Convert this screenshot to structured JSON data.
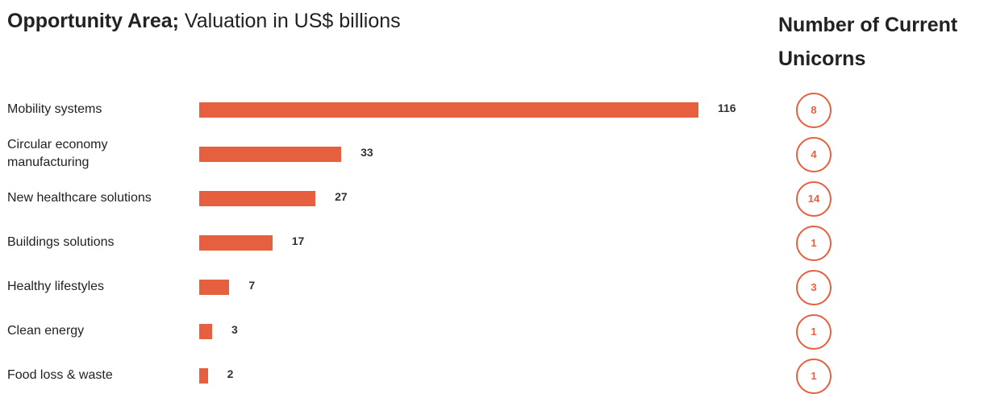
{
  "header": {
    "title_bold": "Opportunity Area;",
    "title_normal": "Valuation in US$ billions",
    "unicorn_header": "Number of Current Unicorns"
  },
  "chart_data": {
    "type": "bar",
    "orientation": "horizontal",
    "title": "Opportunity Area; Valuation in US$ billions",
    "categories": [
      "Mobility systems",
      "Circular economy manufacturing",
      "New healthcare solutions",
      "Buildings solutions",
      "Healthy lifestyles",
      "Clean energy",
      "Food loss & waste"
    ],
    "series": [
      {
        "name": "Valuation in US$ billions",
        "values": [
          116,
          33,
          27,
          17,
          7,
          3,
          2
        ]
      },
      {
        "name": "Number of Current Unicorns",
        "values": [
          8,
          4,
          14,
          1,
          3,
          1,
          1
        ]
      }
    ],
    "bar_color": "#e65f3e",
    "grid": false,
    "legend": "none"
  }
}
